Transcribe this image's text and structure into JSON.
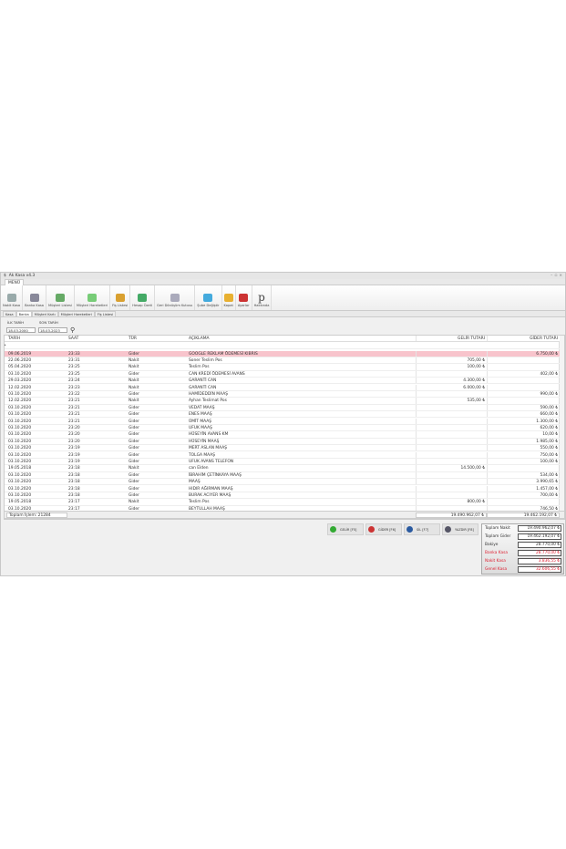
{
  "window": {
    "title": "Ak Kasa v4.3",
    "menu_tab": "MENÜ"
  },
  "ribbon": [
    {
      "label": "Nakit Kasa",
      "color": "#9aa"
    },
    {
      "label": "Banka Kasa",
      "color": "#889"
    },
    {
      "label": "Müşteri Listesi",
      "color": "#6a6"
    },
    {
      "label": "Müşteri Hareketleri",
      "color": "#7c7"
    },
    {
      "label": "Fiş Listesi",
      "color": "#d9a030"
    },
    {
      "label": "Hesap Özeti",
      "color": "#4a6"
    },
    {
      "label": "Geri Dönüşüm Kutusu",
      "color": "#aab"
    },
    {
      "label": "Şube Değiştir",
      "color": "#4ad"
    },
    {
      "label": "Kapat",
      "color": "#e8b030"
    },
    {
      "label": "Ayarlar",
      "color": "#c33"
    },
    {
      "label": "Hakkında",
      "color": "#fff"
    }
  ],
  "tabs": [
    "Kasa",
    "Banka",
    "Müşteri Kartı",
    "Müşteri Hareketleri",
    "Fiş Listesi"
  ],
  "filter": {
    "start_label": "İLK TARİH",
    "end_label": "SON TARİH",
    "start": "18.03.2000",
    "end": "18.03.2023"
  },
  "table": {
    "headers": [
      "TARİH",
      "SAAT",
      "TÜR",
      "AÇIKLAMA",
      "GELİR TUTARI",
      "GİDER TUTARI"
    ],
    "rows": [
      [
        "09.06.2019",
        "23:33",
        "Gider",
        "GOOGLE REKLAM ÖDEMESİ KIBRIS",
        "",
        "6.750,00 ₺"
      ],
      [
        "22.06.2020",
        "23:31",
        "Nakit",
        "Soner Teslim Pos",
        "705,00 ₺",
        ""
      ],
      [
        "05.04.2020",
        "23:25",
        "Nakit",
        "Teslim Pos",
        "100,00 ₺",
        ""
      ],
      [
        "03.10.2020",
        "23:25",
        "Gider",
        "CAN KREDİ ÖDEMESİ AVANS",
        "",
        "402,00 ₺"
      ],
      [
        "29.03.2020",
        "23:24",
        "Nakit",
        "GARANTİ CAN",
        "4.300,00 ₺",
        ""
      ],
      [
        "12.02.2020",
        "23:23",
        "Nakit",
        "GARANTİ CAN",
        "6.000,00 ₺",
        ""
      ],
      [
        "03.10.2020",
        "23:22",
        "Gider",
        "HAMİDEDDİN MAAŞ",
        "",
        "990,00 ₺"
      ],
      [
        "12.02.2020",
        "23:21",
        "Nakit",
        "Ayhan Teslimat Pos",
        "535,00 ₺",
        ""
      ],
      [
        "03.10.2020",
        "23:21",
        "Gider",
        "VEDAT MAAŞ",
        "",
        "590,00 ₺"
      ],
      [
        "03.10.2020",
        "23:21",
        "Gider",
        "ENES MAAŞ",
        "",
        "660,00 ₺"
      ],
      [
        "03.10.2020",
        "23:21",
        "Gider",
        "ÜMİT MAAŞ",
        "",
        "1.300,00 ₺"
      ],
      [
        "03.10.2020",
        "23:20",
        "Gider",
        "UFUK MAAŞ",
        "",
        "620,00 ₺"
      ],
      [
        "03.10.2020",
        "23:20",
        "Gider",
        "HÜSEYİN AVANS KM",
        "",
        "10,00 ₺"
      ],
      [
        "03.10.2020",
        "23:20",
        "Gider",
        "HÜSEYİN MAAŞ",
        "",
        "1.985,00 ₺"
      ],
      [
        "03.10.2020",
        "23:19",
        "Gider",
        "MERT ASLAN MAAŞ",
        "",
        "550,00 ₺"
      ],
      [
        "03.10.2020",
        "23:19",
        "Gider",
        "TOLGA MAAŞ",
        "",
        "750,00 ₺"
      ],
      [
        "03.10.2020",
        "23:19",
        "Gider",
        "UFUK AVANS TELEFON",
        "",
        "100,00 ₺"
      ],
      [
        "19.05.2018",
        "23:18",
        "Nakit",
        "can Elden",
        "14.500,00 ₺",
        ""
      ],
      [
        "03.10.2020",
        "23:18",
        "Gider",
        "İBRAHİM ÇETİNKAYA MAAŞ",
        "",
        "534,00 ₺"
      ],
      [
        "03.10.2020",
        "23:18",
        "Gider",
        "MAAŞ",
        "",
        "3.990,65 ₺"
      ],
      [
        "03.10.2020",
        "23:18",
        "Gider",
        "HIDIR AĞIRMAN MAAŞ",
        "",
        "1.457,00 ₺"
      ],
      [
        "03.10.2020",
        "23:18",
        "Gider",
        "BURAK ACIYER MAAŞ",
        "",
        "700,00 ₺"
      ],
      [
        "19.05.2018",
        "23:17",
        "Nakit",
        "Teslim Pos",
        "800,00 ₺",
        ""
      ],
      [
        "03.10.2020",
        "23:17",
        "Gider",
        "BEYTULLAH MAAŞ",
        "",
        "746,50 ₺"
      ]
    ],
    "footer": {
      "count": "Toplam İşlem: 21284",
      "gelir_sum": "19.490.962,07 ₺",
      "gider_sum": "19.462.192,07 ₺"
    }
  },
  "actions": [
    {
      "label": "GELİR [F5]",
      "color": "#3a3"
    },
    {
      "label": "GİDER [F6]",
      "color": "#c33"
    },
    {
      "label": "SİL [F7]",
      "color": "#2a5aa0"
    },
    {
      "label": "YAZDIR [F8]",
      "color": "#556"
    }
  ],
  "totals": [
    {
      "label": "Toplam Nakit",
      "value": "19.490.962,07 ₺",
      "red": false
    },
    {
      "label": "Toplam Gider",
      "value": "19.462.192,07 ₺",
      "red": false
    },
    {
      "label": "Bakiye",
      "value": "28.770,00 ₺",
      "red": false
    },
    {
      "label": "Banka Kasa",
      "value": "28.770,00 ₺",
      "red": true
    },
    {
      "label": "Nakit Kasa",
      "value": "3.836,55 ₺",
      "red": true
    },
    {
      "label": "Genel Kasa",
      "value": "32.606,55 ₺",
      "red": true
    }
  ]
}
